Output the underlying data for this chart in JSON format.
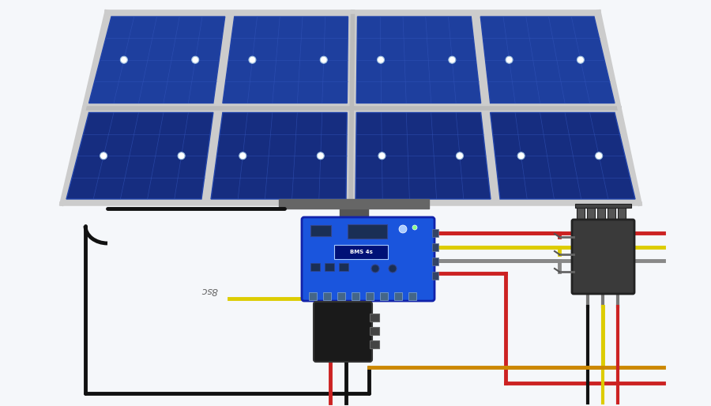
{
  "bg_color": "#f5f7fa",
  "panel_frame_color": "#cccccc",
  "panel_cell_top": "#1e3f9e",
  "panel_cell_bot": "#162d80",
  "panel_grid": "#3355bb",
  "panel_border": "#aaaaaa",
  "wire_black": "#111111",
  "wire_red": "#cc2222",
  "wire_yellow": "#ddcc00",
  "wire_orange": "#cc8800",
  "wire_gray": "#888888",
  "board_blue": "#1a55dd",
  "board_dark": "#112299",
  "board_chip": "#1a2f55",
  "board_led": "#aaccff",
  "black_box": "#1a1a1a",
  "dark_gray": "#333333",
  "mid_gray": "#555555",
  "light_gray": "#999999",
  "transistor_body": "#3a3a3a",
  "transistor_fin": "#555555",
  "text_color": "#666666",
  "label_text": "8sc",
  "mount_color": "#555555"
}
